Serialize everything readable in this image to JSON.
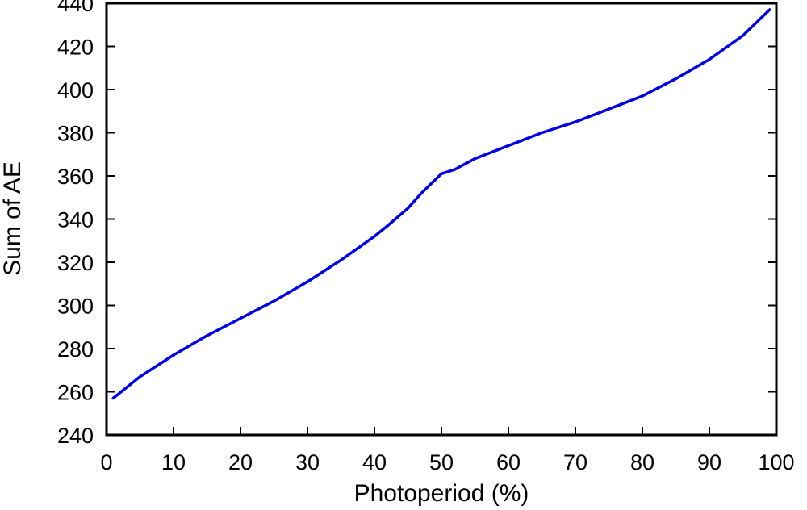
{
  "chart_data": {
    "type": "line",
    "title": "",
    "xlabel": "Photoperiod (%)",
    "ylabel": "Sum of AE",
    "xlim": [
      0,
      100
    ],
    "ylim": [
      240,
      440
    ],
    "xticks": [
      0,
      10,
      20,
      30,
      40,
      50,
      60,
      70,
      80,
      90,
      100
    ],
    "yticks": [
      240,
      260,
      280,
      300,
      320,
      340,
      360,
      380,
      400,
      420,
      440
    ],
    "grid": false,
    "legend": "none",
    "series": [
      {
        "color": "#0000e6",
        "x": [
          1,
          5,
          10,
          15,
          20,
          25,
          30,
          35,
          40,
          42,
          45,
          47,
          49,
          50,
          52,
          55,
          60,
          65,
          70,
          75,
          80,
          85,
          90,
          95,
          99
        ],
        "y": [
          257,
          267,
          277,
          286,
          294,
          302,
          311,
          321,
          332,
          337,
          345,
          352,
          358,
          361,
          363,
          368,
          374,
          380,
          385,
          391,
          397,
          405,
          414,
          425,
          437
        ]
      }
    ]
  }
}
